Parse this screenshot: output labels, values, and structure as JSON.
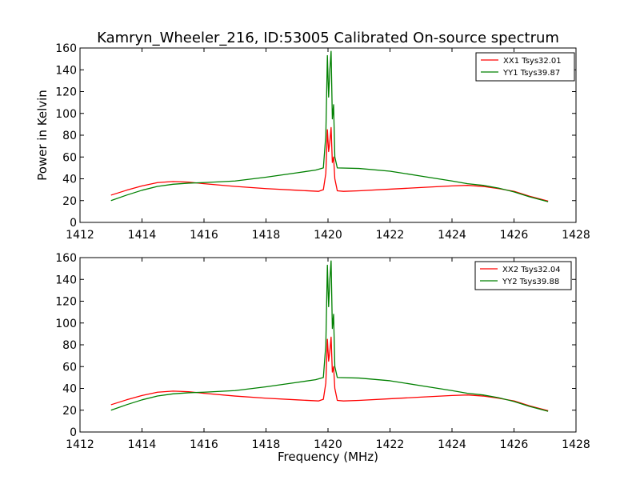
{
  "chart_data": [
    {
      "type": "line",
      "title": "Kamryn_Wheeler_216, ID:53005 Calibrated On-source spectrum",
      "xlabel": "",
      "ylabel": "Power in Kelvin",
      "xlim": [
        1412,
        1428
      ],
      "ylim": [
        0,
        160
      ],
      "xticks": [
        "1412",
        "1414",
        "1416",
        "1418",
        "1420",
        "1422",
        "1424",
        "1426",
        "1428"
      ],
      "yticks": [
        "0",
        "20",
        "40",
        "60",
        "80",
        "100",
        "120",
        "140",
        "160"
      ],
      "grid": false,
      "legend_position": "top-right",
      "series": [
        {
          "name": "XX1 Tsys32.01",
          "color": "#ff0000",
          "points": [
            [
              1413.0,
              25
            ],
            [
              1413.5,
              29.5
            ],
            [
              1414.0,
              33.5
            ],
            [
              1414.5,
              36.5
            ],
            [
              1415.0,
              37.5
            ],
            [
              1415.5,
              37
            ],
            [
              1416.0,
              35.5
            ],
            [
              1417.0,
              33
            ],
            [
              1418.0,
              31
            ],
            [
              1419.0,
              29.5
            ],
            [
              1419.7,
              28.5
            ],
            [
              1419.85,
              30
            ],
            [
              1419.93,
              45
            ],
            [
              1419.98,
              85
            ],
            [
              1420.02,
              65
            ],
            [
              1420.06,
              74
            ],
            [
              1420.1,
              87
            ],
            [
              1420.14,
              55
            ],
            [
              1420.18,
              60
            ],
            [
              1420.22,
              40
            ],
            [
              1420.3,
              29
            ],
            [
              1420.5,
              28.5
            ],
            [
              1421.0,
              29
            ],
            [
              1422.0,
              30.5
            ],
            [
              1423.0,
              32
            ],
            [
              1424.0,
              33.5
            ],
            [
              1424.5,
              34
            ],
            [
              1425.0,
              33
            ],
            [
              1425.5,
              31
            ],
            [
              1426.0,
              28.5
            ],
            [
              1426.5,
              24
            ],
            [
              1427.1,
              19.5
            ]
          ]
        },
        {
          "name": "YY1 Tsys39.87",
          "color": "#008000",
          "points": [
            [
              1413.0,
              20
            ],
            [
              1413.5,
              25
            ],
            [
              1414.0,
              29.5
            ],
            [
              1414.5,
              33
            ],
            [
              1415.0,
              35
            ],
            [
              1415.5,
              36
            ],
            [
              1416.0,
              36.5
            ],
            [
              1417.0,
              38
            ],
            [
              1418.0,
              41.5
            ],
            [
              1419.0,
              45.5
            ],
            [
              1419.6,
              48
            ],
            [
              1419.85,
              50
            ],
            [
              1419.93,
              80
            ],
            [
              1419.98,
              153
            ],
            [
              1420.02,
              115
            ],
            [
              1420.06,
              140
            ],
            [
              1420.1,
              157
            ],
            [
              1420.14,
              95
            ],
            [
              1420.18,
              108
            ],
            [
              1420.22,
              60
            ],
            [
              1420.3,
              50
            ],
            [
              1421.0,
              49.5
            ],
            [
              1422.0,
              47
            ],
            [
              1423.0,
              42.5
            ],
            [
              1424.0,
              38
            ],
            [
              1424.5,
              35.5
            ],
            [
              1425.0,
              34
            ],
            [
              1425.5,
              31.5
            ],
            [
              1426.0,
              28
            ],
            [
              1426.5,
              23.5
            ],
            [
              1427.1,
              19
            ]
          ]
        }
      ]
    },
    {
      "type": "line",
      "title": "",
      "xlabel": "Frequency (MHz)",
      "ylabel": "",
      "xlim": [
        1412,
        1428
      ],
      "ylim": [
        0,
        160
      ],
      "xticks": [
        "1412",
        "1414",
        "1416",
        "1418",
        "1420",
        "1422",
        "1424",
        "1426",
        "1428"
      ],
      "yticks": [
        "0",
        "20",
        "40",
        "60",
        "80",
        "100",
        "120",
        "140",
        "160"
      ],
      "grid": false,
      "legend_position": "top-right",
      "series": [
        {
          "name": "XX2 Tsys32.04",
          "color": "#ff0000",
          "points": [
            [
              1413.0,
              25
            ],
            [
              1413.5,
              29.5
            ],
            [
              1414.0,
              33.5
            ],
            [
              1414.5,
              36.5
            ],
            [
              1415.0,
              37.5
            ],
            [
              1415.5,
              37
            ],
            [
              1416.0,
              35.5
            ],
            [
              1417.0,
              33
            ],
            [
              1418.0,
              31
            ],
            [
              1419.0,
              29.5
            ],
            [
              1419.7,
              28.5
            ],
            [
              1419.85,
              30
            ],
            [
              1419.93,
              45
            ],
            [
              1419.98,
              85
            ],
            [
              1420.02,
              65
            ],
            [
              1420.06,
              74
            ],
            [
              1420.1,
              87
            ],
            [
              1420.14,
              55
            ],
            [
              1420.18,
              60
            ],
            [
              1420.22,
              40
            ],
            [
              1420.3,
              29
            ],
            [
              1420.5,
              28.5
            ],
            [
              1421.0,
              29
            ],
            [
              1422.0,
              30.5
            ],
            [
              1423.0,
              32
            ],
            [
              1424.0,
              33.5
            ],
            [
              1424.5,
              34
            ],
            [
              1425.0,
              33
            ],
            [
              1425.5,
              31
            ],
            [
              1426.0,
              28.5
            ],
            [
              1426.5,
              24
            ],
            [
              1427.1,
              19.5
            ]
          ]
        },
        {
          "name": "YY2 Tsys39.88",
          "color": "#008000",
          "points": [
            [
              1413.0,
              20
            ],
            [
              1413.5,
              25
            ],
            [
              1414.0,
              29.5
            ],
            [
              1414.5,
              33
            ],
            [
              1415.0,
              35
            ],
            [
              1415.5,
              36
            ],
            [
              1416.0,
              36.5
            ],
            [
              1417.0,
              38
            ],
            [
              1418.0,
              41.5
            ],
            [
              1419.0,
              45.5
            ],
            [
              1419.6,
              48
            ],
            [
              1419.85,
              50
            ],
            [
              1419.93,
              80
            ],
            [
              1419.98,
              153
            ],
            [
              1420.02,
              115
            ],
            [
              1420.06,
              140
            ],
            [
              1420.1,
              157
            ],
            [
              1420.14,
              95
            ],
            [
              1420.18,
              108
            ],
            [
              1420.22,
              60
            ],
            [
              1420.3,
              50
            ],
            [
              1421.0,
              49.5
            ],
            [
              1422.0,
              47
            ],
            [
              1423.0,
              42.5
            ],
            [
              1424.0,
              38
            ],
            [
              1424.5,
              35.5
            ],
            [
              1425.0,
              34
            ],
            [
              1425.5,
              31.5
            ],
            [
              1426.0,
              28
            ],
            [
              1426.5,
              23.5
            ],
            [
              1427.1,
              19
            ]
          ]
        }
      ]
    }
  ]
}
